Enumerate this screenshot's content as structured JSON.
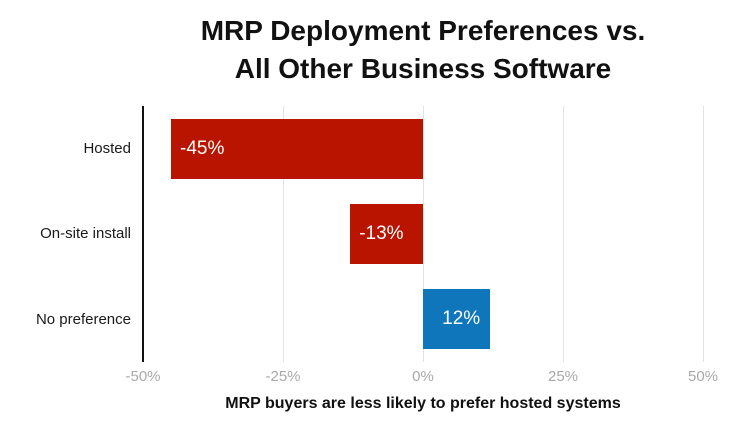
{
  "chart_data": {
    "type": "bar",
    "orientation": "horizontal",
    "title_lines": [
      "MRP Deployment Preferences vs.",
      "All Other Business Software"
    ],
    "caption": "MRP buyers are less likely to prefer hosted systems",
    "categories": [
      "Hosted",
      "On-site install",
      "No preference"
    ],
    "values": [
      -45,
      -13,
      12
    ],
    "value_labels": [
      "-45%",
      "-13%",
      "12%"
    ],
    "x_ticks": [
      -50,
      -25,
      0,
      25,
      50
    ],
    "x_tick_labels": [
      "-50%",
      "-25%",
      "0%",
      "25%",
      "50%"
    ],
    "xlim": [
      -50,
      50
    ],
    "grid": "vertical-only",
    "legend": "none",
    "colors": {
      "negative_bar": "#b81400",
      "positive_bar": "#0f76bb",
      "bar_label": "#ffffff",
      "axis_line": "#111111",
      "gridline": "#e2e2e2",
      "tick_label": "#a9a9a9",
      "category_label": "#1a1a1a",
      "title": "#111111",
      "caption": "#111111",
      "background": "#ffffff"
    }
  }
}
